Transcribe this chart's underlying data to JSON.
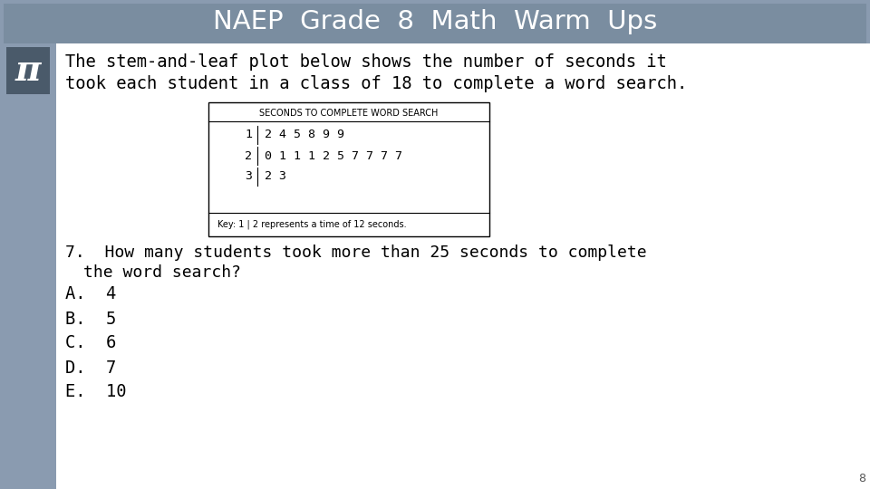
{
  "title": "NAEP  Grade  8  Math  Warm  Ups",
  "title_color": "#ffffff",
  "outer_bg": "#8a9bb0",
  "inner_header_color": "#7a8da0",
  "body_bg": "#ffffff",
  "sidebar_color": "#8a9bb0",
  "pi_box_color": "#4a5a6a",
  "pi_symbol": "π",
  "intro_text_line1": "The stem-and-leaf plot below shows the number of seconds it",
  "intro_text_line2": "took each student in a class of 18 to complete a word search.",
  "table_title": "SECONDS TO COMPLETE WORD SEARCH",
  "stem_leaves": [
    {
      "stem": "1",
      "leaves": "2 4 5 8 9 9"
    },
    {
      "stem": "2",
      "leaves": "0 1 1 1 2 5 7 7 7 7"
    },
    {
      "stem": "3",
      "leaves": "2 3"
    }
  ],
  "key_text": "Key: 1 | 2 represents a time of 12 seconds.",
  "question_text_line1": "7.  How many students took more than 25 seconds to complete",
  "question_text_line2": "     the word search?",
  "answers": [
    "A.  4",
    "B.  5",
    "C.  6",
    "D.  7",
    "E.  10"
  ],
  "page_number": "8"
}
